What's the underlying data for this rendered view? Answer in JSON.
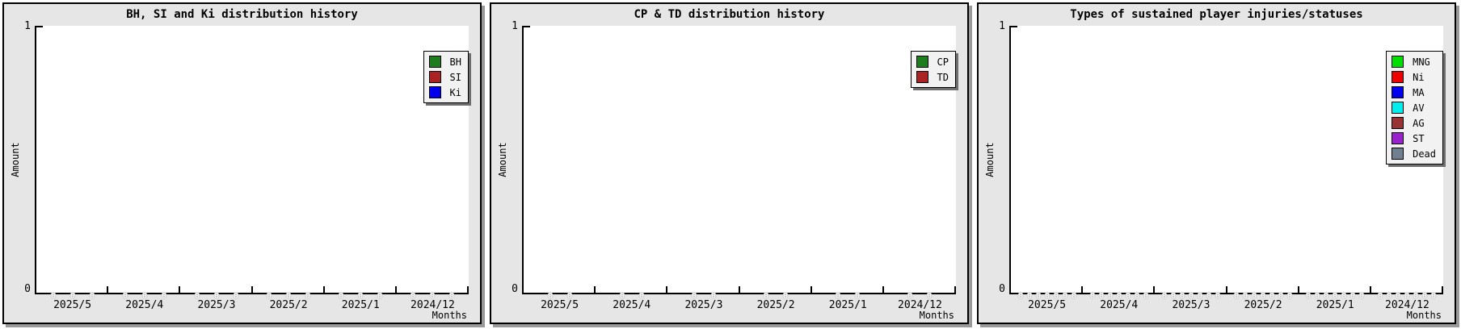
{
  "chart_data": [
    {
      "type": "line",
      "title": "BH, SI and Ki distribution history",
      "xlabel": "Months",
      "ylabel": "Amount",
      "ylim": [
        0,
        1
      ],
      "grid": false,
      "legend_position": "top-right",
      "categories": [
        "2025/5",
        "2025/4",
        "2025/3",
        "2025/2",
        "2025/1",
        "2024/12"
      ],
      "series": [
        {
          "name": "BH",
          "color": "#1e7e1e",
          "values": [
            0,
            0,
            0,
            0,
            0,
            0
          ]
        },
        {
          "name": "SI",
          "color": "#aa2222",
          "values": [
            0,
            0,
            0,
            0,
            0,
            0
          ]
        },
        {
          "name": "Ki",
          "color": "#0000ee",
          "values": [
            0,
            0,
            0,
            0,
            0,
            0
          ]
        }
      ],
      "value_label_color": "#ffffff"
    },
    {
      "type": "line",
      "title": "CP & TD distribution history",
      "xlabel": "Months",
      "ylabel": "Amount",
      "ylim": [
        0,
        1
      ],
      "grid": false,
      "legend_position": "top-right",
      "categories": [
        "2025/5",
        "2025/4",
        "2025/3",
        "2025/2",
        "2025/1",
        "2024/12"
      ],
      "series": [
        {
          "name": "CP",
          "color": "#1e7e1e",
          "values": [
            0,
            0,
            0,
            0,
            0,
            0
          ]
        },
        {
          "name": "TD",
          "color": "#aa2222",
          "values": [
            0,
            0,
            0,
            0,
            0,
            0
          ]
        }
      ],
      "value_label_color": "#ffffff"
    },
    {
      "type": "line",
      "title": "Types of sustained player injuries/statuses",
      "xlabel": "Months",
      "ylabel": "Amount",
      "ylim": [
        0,
        1
      ],
      "grid": false,
      "legend_position": "top-right",
      "categories": [
        "2025/5",
        "2025/4",
        "2025/3",
        "2025/2",
        "2025/1",
        "2024/12"
      ],
      "series": [
        {
          "name": "MNG",
          "color": "#00dd00",
          "values": [
            0,
            0,
            0,
            0,
            0,
            0
          ]
        },
        {
          "name": "Ni",
          "color": "#ee0000",
          "values": [
            0,
            0,
            0,
            0,
            0,
            0
          ]
        },
        {
          "name": "MA",
          "color": "#0000ee",
          "values": [
            0,
            0,
            0,
            0,
            0,
            0
          ]
        },
        {
          "name": "AV",
          "color": "#00eeee",
          "values": [
            0,
            0,
            0,
            0,
            0,
            0
          ]
        },
        {
          "name": "AG",
          "color": "#993333",
          "values": [
            0,
            0,
            0,
            0,
            0,
            0
          ]
        },
        {
          "name": "ST",
          "color": "#9922cc",
          "values": [
            0,
            0,
            0,
            0,
            0,
            0
          ]
        },
        {
          "name": "Dead",
          "color": "#708090",
          "values": [
            0,
            0,
            0,
            0,
            0,
            0
          ]
        }
      ],
      "value_label_color": "#ffffff"
    }
  ],
  "colors": {
    "panel_background": "#e6e6e6",
    "plot_background": "#ffffff",
    "axis": "#000000",
    "panel_shadow": "#999999",
    "legend_background": "#f2f2f2",
    "legend_shadow": "#6e6e6e"
  }
}
